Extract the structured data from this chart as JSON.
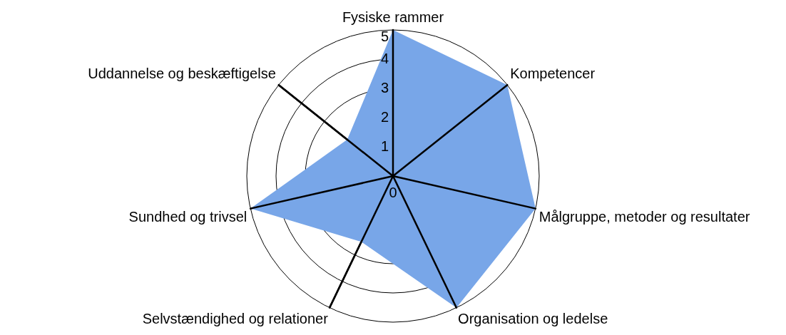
{
  "chart_data": {
    "type": "radar",
    "categories": [
      "Fysiske rammer",
      "Kompetencer",
      "Målgruppe, metoder og resultater",
      "Organisation og ledelse",
      "Selvstændighed og relationer",
      "Sundhed og trivsel",
      "Uddannelse og beskæftigelse"
    ],
    "series": [
      {
        "color": "#78a6e8",
        "values": [
          5,
          5,
          5,
          5,
          2.5,
          5,
          2
        ]
      }
    ],
    "ylim": [
      0,
      5
    ],
    "yticks": [
      0,
      1,
      2,
      3,
      4,
      5
    ],
    "grid": true,
    "legend": false,
    "marker": "none"
  }
}
